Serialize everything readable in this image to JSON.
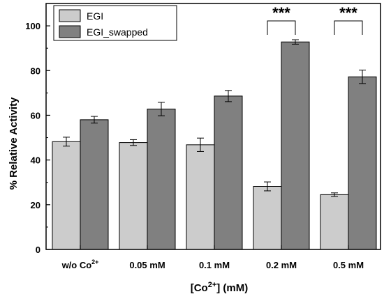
{
  "chart_data": {
    "type": "bar",
    "categories": [
      {
        "base": "w/o Co",
        "sup": "2+",
        "rest": ""
      },
      {
        "base": "0.05 mM",
        "sup": "",
        "rest": ""
      },
      {
        "base": "0.1 mM",
        "sup": "",
        "rest": ""
      },
      {
        "base": "0.2 mM",
        "sup": "",
        "rest": ""
      },
      {
        "base": "0.5 mM",
        "sup": "",
        "rest": ""
      }
    ],
    "series": [
      {
        "name": "EGI",
        "values": [
          48.2,
          47.8,
          46.8,
          28.2,
          24.5
        ],
        "errors": [
          2.0,
          1.3,
          3.0,
          2.0,
          0.8
        ],
        "color": "#cccccc"
      },
      {
        "name": "EGI_swapped",
        "values": [
          58.0,
          62.8,
          68.6,
          92.8,
          77.2
        ],
        "errors": [
          1.5,
          3.0,
          2.5,
          1.0,
          3.0
        ],
        "color": "#808080"
      }
    ],
    "xlabel": {
      "base": "[Co",
      "sup": "2+",
      "rest": "] (mM)"
    },
    "ylabel": "% Relative Activity",
    "ylim": [
      0,
      110
    ],
    "yticks": [
      0,
      20,
      40,
      60,
      80,
      100
    ],
    "legend_position": "top-left",
    "annotations": [
      {
        "category_index": 3,
        "text": "***"
      },
      {
        "category_index": 4,
        "text": "***"
      }
    ],
    "grid": false
  }
}
